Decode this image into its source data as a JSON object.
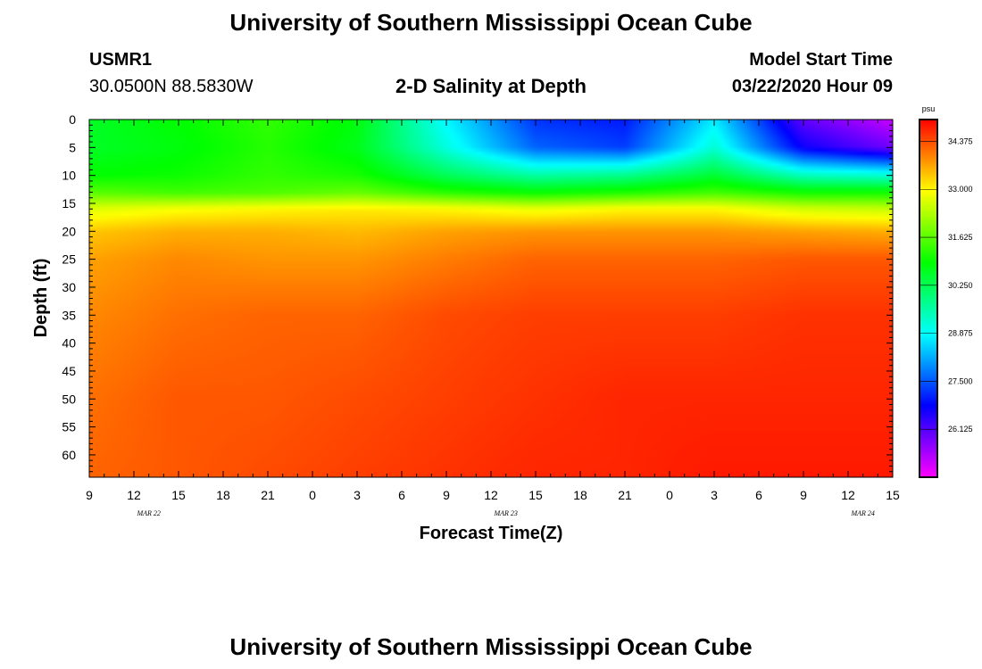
{
  "header": {
    "title": "University of Southern Mississippi Ocean Cube",
    "station_id": "USMR1",
    "coordinates": "30.0500N 88.5830W",
    "subtitle": "2-D Salinity at Depth",
    "model_start_label": "Model Start Time",
    "model_start_value": "03/22/2020 Hour 09"
  },
  "footer": {
    "title": "University of Southern Mississippi Ocean Cube"
  },
  "chart_data": {
    "type": "heatmap",
    "title": "2-D Salinity at Depth",
    "xlabel": "Forecast Time(Z)",
    "ylabel": "Depth (ft)",
    "x_tick_labels": [
      "9",
      "12",
      "15",
      "18",
      "21",
      "0",
      "3",
      "6",
      "9",
      "12",
      "15",
      "18",
      "21",
      "0",
      "3",
      "6",
      "9",
      "12",
      "15"
    ],
    "x_date_labels": [
      "MAR 22",
      "MAR 23",
      "MAR 24"
    ],
    "y_tick_labels": [
      "0",
      "5",
      "10",
      "15",
      "20",
      "25",
      "30",
      "35",
      "40",
      "45",
      "50",
      "55",
      "60"
    ],
    "ylim": [
      0,
      64
    ],
    "xlim_hours_from_start": [
      0,
      54
    ],
    "colorbar": {
      "unit": "psu",
      "tick_labels": [
        "34.375",
        "33.000",
        "31.625",
        "30.250",
        "28.875",
        "27.500",
        "26.125"
      ],
      "range": [
        24.75,
        35.0
      ]
    },
    "time_hours": [
      0,
      6,
      12,
      18,
      24,
      30,
      36,
      42,
      48,
      54
    ],
    "depth_ft": [
      0,
      5,
      10,
      13,
      16,
      20,
      25,
      35,
      50,
      64
    ],
    "salinity_psu": [
      [
        30.6,
        30.9,
        31.3,
        30.8,
        28.8,
        27.2,
        27.0,
        28.7,
        26.0,
        25.2
      ],
      [
        30.6,
        30.8,
        31.2,
        30.7,
        29.1,
        27.6,
        27.3,
        29.2,
        26.7,
        25.9
      ],
      [
        30.9,
        31.0,
        31.3,
        31.1,
        30.2,
        29.6,
        29.8,
        30.5,
        29.4,
        29.2
      ],
      [
        31.6,
        31.4,
        31.5,
        31.7,
        31.2,
        30.9,
        31.1,
        31.4,
        31.0,
        31.0
      ],
      [
        32.7,
        32.9,
        33.0,
        33.1,
        33.0,
        32.8,
        33.0,
        33.0,
        32.6,
        32.5
      ],
      [
        33.4,
        33.6,
        33.6,
        33.5,
        33.7,
        33.8,
        33.8,
        33.8,
        33.7,
        33.6
      ],
      [
        33.7,
        33.9,
        33.8,
        33.8,
        34.0,
        34.2,
        34.2,
        34.2,
        34.3,
        34.3
      ],
      [
        33.9,
        34.1,
        34.2,
        34.2,
        34.4,
        34.5,
        34.5,
        34.5,
        34.6,
        34.6
      ],
      [
        34.1,
        34.3,
        34.3,
        34.4,
        34.5,
        34.6,
        34.7,
        34.7,
        34.7,
        34.7
      ],
      [
        34.2,
        34.3,
        34.4,
        34.5,
        34.6,
        34.7,
        34.7,
        34.8,
        34.8,
        34.8
      ]
    ]
  }
}
